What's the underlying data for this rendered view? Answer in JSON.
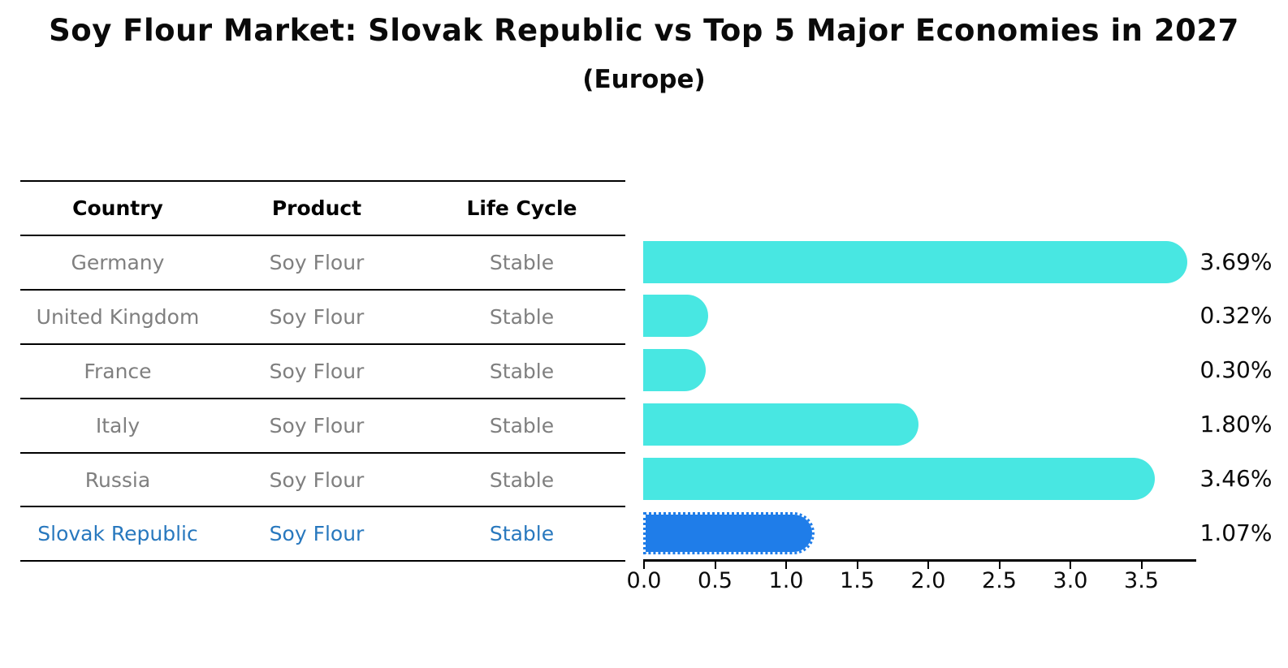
{
  "page": {
    "title": "Soy Flour Market: Slovak Republic vs Top 5 Major Economies in 2027",
    "subtitle": "(Europe)"
  },
  "table": {
    "headers": [
      "Country",
      "Product",
      "Life Cycle"
    ],
    "rows": [
      {
        "country": "Germany",
        "product": "Soy Flour",
        "life_cycle": "Stable"
      },
      {
        "country": "United Kingdom",
        "product": "Soy Flour",
        "life_cycle": "Stable"
      },
      {
        "country": "France",
        "product": "Soy Flour",
        "life_cycle": "Stable"
      },
      {
        "country": "Italy",
        "product": "Soy Flour",
        "life_cycle": "Stable"
      },
      {
        "country": "Russia",
        "product": "Soy Flour",
        "life_cycle": "Stable"
      },
      {
        "country": "Slovak Republic",
        "product": "Soy Flour",
        "life_cycle": "Stable"
      }
    ],
    "highlighted_row": "Slovak Republic"
  },
  "chart_data": {
    "type": "bar",
    "orientation": "horizontal",
    "title": "Soy Flour Market: Slovak Republic vs Top 5 Major Economies in 2027",
    "subtitle": "(Europe)",
    "categories": [
      "Germany",
      "United Kingdom",
      "France",
      "Italy",
      "Russia",
      "Slovak Republic"
    ],
    "values": [
      3.69,
      0.32,
      0.3,
      1.8,
      3.46,
      1.07
    ],
    "value_labels": [
      "3.69%",
      "0.32%",
      "0.30%",
      "1.80%",
      "3.46%",
      "1.07%"
    ],
    "x_ticks": [
      "0.0",
      "0.5",
      "1.0",
      "1.5",
      "2.0",
      "2.5",
      "3.0",
      "3.5"
    ],
    "xlim": [
      0,
      3.9
    ],
    "grid": false,
    "legend": false,
    "highlight_index": 5,
    "colors": {
      "bar": "#48E7E2",
      "highlight_bar": "#1F7DE9",
      "highlight_text": "#2878BE",
      "table_text": "#7F7F7F",
      "axis_text": "#000000"
    }
  }
}
